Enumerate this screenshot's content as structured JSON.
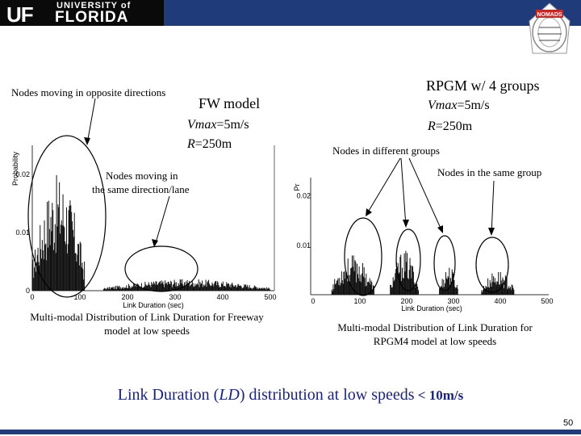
{
  "header": {
    "uf_mark": "UF",
    "university_of": "UNIVERSITY of",
    "florida": "FLORIDA",
    "nomads_logo_text": "NOMADS"
  },
  "left_panel": {
    "annot_opposite": "Nodes moving in opposite directions",
    "model_title": "FW model",
    "vmax_var": "Vmax",
    "vmax_val": "=5m/s",
    "r_var": "R",
    "r_val": "=250m",
    "annot_same": "Nodes moving in",
    "annot_same2": "the same direction/lane",
    "caption_line1": "Multi-modal Distribution of Link Duration for Freeway",
    "caption_line2": "model at low speeds"
  },
  "right_panel": {
    "model_title": "RPGM w/ 4 groups",
    "vmax_var": "Vmax",
    "vmax_val": "=5m/s",
    "r_var": "R",
    "r_val": "=250m",
    "annot_diff": "Nodes in different groups",
    "annot_same": "Nodes in the same group",
    "caption_line1": "Multi-modal Distribution of Link Duration for",
    "caption_line2": "RPGM4 model at low speeds"
  },
  "footer": {
    "caption_part1": "Link Duration (",
    "caption_ld": "LD",
    "caption_part2": ") distribution at low speeds",
    "caption_part3": " < 10m/s",
    "page_number": "50"
  },
  "chart_data": [
    {
      "type": "bar",
      "title": "",
      "xlabel": "Link Duration (sec)",
      "ylabel": "Probability",
      "xlim": [
        0,
        500
      ],
      "ylim": [
        0,
        0.025
      ],
      "x_ticks": [
        "0",
        "100",
        "200",
        "300",
        "400",
        "500"
      ],
      "y_ticks": [
        "0",
        "0.01",
        "0.02"
      ],
      "modes": [
        {
          "name": "opposite directions",
          "x_range": [
            0,
            110
          ],
          "peak": 0.02
        },
        {
          "name": "same direction/lane",
          "x_range": [
            150,
            500
          ],
          "peak": 0.002
        }
      ]
    },
    {
      "type": "bar",
      "title": "",
      "xlabel": "Link Duration (sec)",
      "ylabel": "Pr",
      "xlim": [
        0,
        500
      ],
      "ylim": [
        0,
        0.025
      ],
      "x_ticks": [
        "0",
        "100",
        "200",
        "300",
        "400",
        "500"
      ],
      "y_ticks": [
        "0.02",
        "0.01"
      ],
      "modes": [
        {
          "name": "group 1",
          "x_range": [
            40,
            130
          ],
          "peak": 0.008
        },
        {
          "name": "group 2",
          "x_range": [
            165,
            225
          ],
          "peak": 0.009
        },
        {
          "name": "group 3",
          "x_range": [
            270,
            310
          ],
          "peak": 0.006
        },
        {
          "name": "group 4",
          "x_range": [
            360,
            430
          ],
          "peak": 0.005
        }
      ]
    }
  ]
}
